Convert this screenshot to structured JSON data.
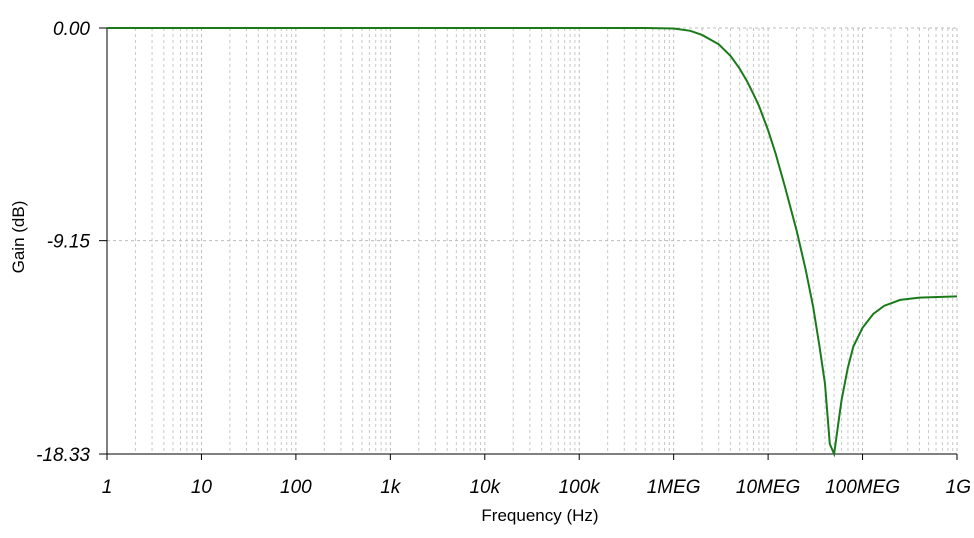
{
  "chart_data": {
    "type": "line",
    "xlabel": "Frequency (Hz)",
    "ylabel": "Gain (dB)",
    "x_scale": "log",
    "xlim": [
      1,
      1000000000
    ],
    "ylim": [
      -18.33,
      0.0
    ],
    "x_ticks": [
      {
        "value": 1,
        "label": "1"
      },
      {
        "value": 10,
        "label": "10"
      },
      {
        "value": 100,
        "label": "100"
      },
      {
        "value": 1000,
        "label": "1k"
      },
      {
        "value": 10000,
        "label": "10k"
      },
      {
        "value": 100000,
        "label": "100k"
      },
      {
        "value": 1000000,
        "label": "1MEG"
      },
      {
        "value": 10000000,
        "label": "10MEG"
      },
      {
        "value": 100000000,
        "label": "100MEG"
      },
      {
        "value": 1000000000,
        "label": "1G"
      }
    ],
    "y_ticks": [
      {
        "value": 0.0,
        "label": "0.00"
      },
      {
        "value": -9.15,
        "label": "-9.15"
      },
      {
        "value": -18.33,
        "label": "-18.33"
      }
    ],
    "grid": true,
    "line_color": "#1a7a1a",
    "series": [
      {
        "x": [
          1,
          10,
          100,
          1000,
          10000,
          100000,
          500000,
          1000000,
          1500000,
          2000000,
          3000000,
          4000000,
          5000000,
          6000000,
          7000000,
          8000000,
          10000000,
          12000000,
          15000000,
          20000000,
          25000000,
          30000000,
          35000000,
          40000000,
          45000000,
          50000000,
          55000000,
          60000000,
          70000000,
          80000000,
          100000000,
          130000000,
          170000000,
          250000000,
          400000000,
          1000000000
        ],
        "y": [
          0.0,
          0.0,
          0.0,
          0.0,
          0.0,
          0.0,
          0.0,
          -0.02,
          -0.12,
          -0.3,
          -0.7,
          -1.2,
          -1.75,
          -2.3,
          -2.85,
          -3.35,
          -4.4,
          -5.4,
          -6.8,
          -8.7,
          -10.4,
          -12.0,
          -13.7,
          -15.3,
          -17.9,
          -18.33,
          -17.1,
          -16.0,
          -14.6,
          -13.7,
          -12.9,
          -12.3,
          -11.95,
          -11.7,
          -11.6,
          -11.55
        ]
      }
    ]
  }
}
